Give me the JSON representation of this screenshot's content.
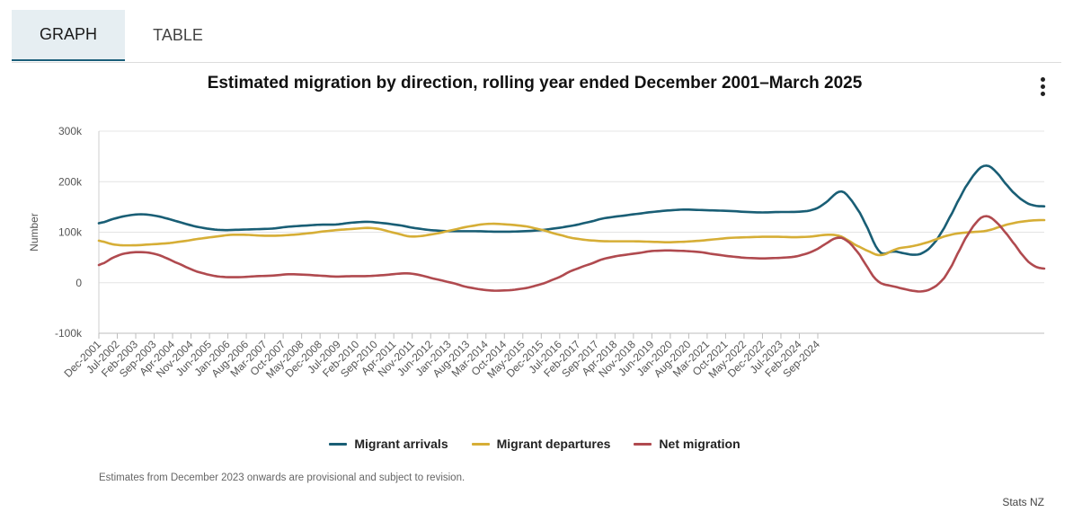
{
  "tabs": [
    {
      "label": "GRAPH",
      "active": true
    },
    {
      "label": "TABLE",
      "active": false
    }
  ],
  "menu": {
    "icon": "more-vertical-icon"
  },
  "colors": {
    "arrivals": "#195e75",
    "departures": "#d6ae36",
    "net": "#b04a4f",
    "grid": "#e4e4e4",
    "axis_text": "#555555"
  },
  "chart_data": {
    "type": "line",
    "title": "Estimated migration by direction, rolling year ended December 2001–March 2025",
    "xlabel": "",
    "ylabel": "Number",
    "ylim": [
      -100000,
      300000
    ],
    "yticks": [
      -100000,
      0,
      100000,
      200000,
      300000
    ],
    "ytick_labels": [
      "-100k",
      "0",
      "100k",
      "200k",
      "300k"
    ],
    "x_start": "2001-12",
    "x_end": "2025-03",
    "x_step_months": 1,
    "x_tick_labels": [
      "Dec-2001",
      "Jul-2002",
      "Feb-2003",
      "Sep-2003",
      "Apr-2004",
      "Nov-2004",
      "Jun-2005",
      "Jan-2006",
      "Aug-2006",
      "Mar-2007",
      "Oct-2007",
      "May-2008",
      "Dec-2008",
      "Jul-2009",
      "Feb-2010",
      "Sep-2010",
      "Apr-2011",
      "Nov-2011",
      "Jun-2012",
      "Jan-2013",
      "Aug-2013",
      "Mar-2014",
      "Oct-2014",
      "May-2015",
      "Dec-2015",
      "Jul-2016",
      "Feb-2017",
      "Sep-2017",
      "Apr-2018",
      "Nov-2018",
      "Jun-2019",
      "Jan-2020",
      "Aug-2020",
      "Mar-2021",
      "Oct-2021",
      "May-2022",
      "Dec-2022",
      "Jul-2023",
      "Feb-2024",
      "Sep-2024"
    ],
    "legend_position": "bottom",
    "series": [
      {
        "name": "Migrant arrivals",
        "anchors": [
          [
            0,
            116000
          ],
          [
            4,
            124000
          ],
          [
            8,
            130000
          ],
          [
            12,
            134000
          ],
          [
            16,
            136000
          ],
          [
            20,
            134000
          ],
          [
            24,
            130000
          ],
          [
            28,
            124000
          ],
          [
            32,
            118000
          ],
          [
            36,
            112000
          ],
          [
            40,
            108000
          ],
          [
            44,
            105000
          ],
          [
            48,
            104000
          ],
          [
            54,
            105000
          ],
          [
            60,
            106000
          ],
          [
            66,
            107000
          ],
          [
            72,
            111000
          ],
          [
            78,
            113000
          ],
          [
            84,
            115000
          ],
          [
            90,
            115000
          ],
          [
            96,
            119000
          ],
          [
            102,
            121000
          ],
          [
            108,
            118000
          ],
          [
            114,
            114000
          ],
          [
            120,
            108000
          ],
          [
            126,
            104000
          ],
          [
            132,
            102000
          ],
          [
            138,
            102000
          ],
          [
            144,
            102000
          ],
          [
            150,
            101000
          ],
          [
            156,
            101000
          ],
          [
            162,
            102000
          ],
          [
            168,
            104000
          ],
          [
            174,
            108000
          ],
          [
            180,
            113000
          ],
          [
            186,
            120000
          ],
          [
            192,
            128000
          ],
          [
            198,
            132000
          ],
          [
            204,
            136000
          ],
          [
            210,
            140000
          ],
          [
            216,
            143000
          ],
          [
            222,
            145000
          ],
          [
            228,
            144000
          ],
          [
            234,
            143000
          ],
          [
            240,
            142000
          ],
          [
            246,
            140000
          ],
          [
            252,
            139000
          ],
          [
            258,
            140000
          ],
          [
            264,
            140000
          ],
          [
            270,
            142000
          ],
          [
            274,
            150000
          ],
          [
            278,
            167000
          ],
          [
            281,
            183000
          ],
          [
            282,
            186000
          ],
          [
            284,
            175000
          ],
          [
            287,
            155000
          ],
          [
            290,
            130000
          ],
          [
            293,
            95000
          ],
          [
            296,
            60000
          ],
          [
            297,
            52000
          ],
          [
            299,
            58000
          ],
          [
            301,
            64000
          ],
          [
            304,
            60000
          ],
          [
            307,
            57000
          ],
          [
            310,
            54000
          ],
          [
            313,
            58000
          ],
          [
            316,
            70000
          ],
          [
            319,
            90000
          ],
          [
            322,
            118000
          ],
          [
            325,
            148000
          ],
          [
            328,
            180000
          ],
          [
            331,
            205000
          ],
          [
            334,
            225000
          ],
          [
            336,
            235000
          ],
          [
            338,
            232000
          ],
          [
            340,
            225000
          ],
          [
            343,
            205000
          ],
          [
            346,
            185000
          ],
          [
            349,
            170000
          ],
          [
            352,
            158000
          ],
          [
            355,
            152000
          ],
          [
            359,
            151000
          ]
        ]
      },
      {
        "name": "Migrant departures",
        "anchors": [
          [
            0,
            85000
          ],
          [
            4,
            77000
          ],
          [
            8,
            74000
          ],
          [
            14,
            74000
          ],
          [
            20,
            76000
          ],
          [
            26,
            78000
          ],
          [
            32,
            82000
          ],
          [
            38,
            87000
          ],
          [
            44,
            91000
          ],
          [
            50,
            95000
          ],
          [
            56,
            95000
          ],
          [
            62,
            93000
          ],
          [
            68,
            93000
          ],
          [
            74,
            95000
          ],
          [
            80,
            98000
          ],
          [
            86,
            102000
          ],
          [
            92,
            105000
          ],
          [
            98,
            107000
          ],
          [
            102,
            109000
          ],
          [
            106,
            107000
          ],
          [
            112,
            99000
          ],
          [
            118,
            91000
          ],
          [
            122,
            92000
          ],
          [
            128,
            97000
          ],
          [
            134,
            104000
          ],
          [
            140,
            111000
          ],
          [
            146,
            116000
          ],
          [
            150,
            117000
          ],
          [
            156,
            115000
          ],
          [
            162,
            112000
          ],
          [
            168,
            105000
          ],
          [
            174,
            96000
          ],
          [
            180,
            88000
          ],
          [
            186,
            84000
          ],
          [
            192,
            82000
          ],
          [
            198,
            82000
          ],
          [
            204,
            82000
          ],
          [
            210,
            81000
          ],
          [
            216,
            80000
          ],
          [
            222,
            81000
          ],
          [
            228,
            83000
          ],
          [
            234,
            86000
          ],
          [
            240,
            89000
          ],
          [
            246,
            90000
          ],
          [
            252,
            91000
          ],
          [
            258,
            91000
          ],
          [
            264,
            90000
          ],
          [
            270,
            91000
          ],
          [
            276,
            95000
          ],
          [
            280,
            95000
          ],
          [
            283,
            90000
          ],
          [
            286,
            78000
          ],
          [
            290,
            68000
          ],
          [
            294,
            58000
          ],
          [
            297,
            52000
          ],
          [
            300,
            60000
          ],
          [
            303,
            68000
          ],
          [
            306,
            70000
          ],
          [
            309,
            72000
          ],
          [
            312,
            76000
          ],
          [
            316,
            82000
          ],
          [
            320,
            90000
          ],
          [
            324,
            96000
          ],
          [
            328,
            99000
          ],
          [
            334,
            101000
          ],
          [
            337,
            102000
          ],
          [
            340,
            107000
          ],
          [
            344,
            114000
          ],
          [
            348,
            119000
          ],
          [
            352,
            122000
          ],
          [
            356,
            124000
          ],
          [
            359,
            124000
          ]
        ]
      },
      {
        "name": "Net migration",
        "anchors": [
          [
            0,
            32000
          ],
          [
            4,
            46000
          ],
          [
            8,
            56000
          ],
          [
            12,
            60000
          ],
          [
            16,
            61000
          ],
          [
            20,
            59000
          ],
          [
            24,
            53000
          ],
          [
            28,
            43000
          ],
          [
            32,
            34000
          ],
          [
            36,
            24000
          ],
          [
            40,
            18000
          ],
          [
            44,
            13000
          ],
          [
            48,
            11000
          ],
          [
            54,
            11000
          ],
          [
            60,
            13000
          ],
          [
            66,
            14000
          ],
          [
            72,
            17000
          ],
          [
            78,
            16000
          ],
          [
            84,
            14000
          ],
          [
            90,
            12000
          ],
          [
            96,
            13000
          ],
          [
            102,
            13000
          ],
          [
            108,
            15000
          ],
          [
            114,
            18000
          ],
          [
            118,
            19000
          ],
          [
            122,
            15000
          ],
          [
            128,
            7000
          ],
          [
            134,
            0
          ],
          [
            140,
            -9000
          ],
          [
            146,
            -14000
          ],
          [
            150,
            -16000
          ],
          [
            156,
            -15000
          ],
          [
            162,
            -11000
          ],
          [
            168,
            -3000
          ],
          [
            174,
            9000
          ],
          [
            180,
            25000
          ],
          [
            186,
            36000
          ],
          [
            192,
            48000
          ],
          [
            198,
            54000
          ],
          [
            204,
            58000
          ],
          [
            210,
            63000
          ],
          [
            216,
            64000
          ],
          [
            222,
            63000
          ],
          [
            228,
            61000
          ],
          [
            234,
            56000
          ],
          [
            240,
            52000
          ],
          [
            246,
            49000
          ],
          [
            252,
            48000
          ],
          [
            258,
            49000
          ],
          [
            264,
            51000
          ],
          [
            270,
            59000
          ],
          [
            274,
            70000
          ],
          [
            278,
            84000
          ],
          [
            281,
            92000
          ],
          [
            283,
            88000
          ],
          [
            286,
            75000
          ],
          [
            290,
            48000
          ],
          [
            293,
            20000
          ],
          [
            295,
            5000
          ],
          [
            297,
            -3000
          ],
          [
            300,
            -5000
          ],
          [
            304,
            -10000
          ],
          [
            307,
            -14000
          ],
          [
            310,
            -17000
          ],
          [
            313,
            -18000
          ],
          [
            316,
            -13000
          ],
          [
            319,
            -3000
          ],
          [
            322,
            15000
          ],
          [
            325,
            45000
          ],
          [
            328,
            78000
          ],
          [
            331,
            105000
          ],
          [
            334,
            125000
          ],
          [
            336,
            135000
          ],
          [
            338,
            132000
          ],
          [
            340,
            125000
          ],
          [
            343,
            108000
          ],
          [
            346,
            88000
          ],
          [
            349,
            67000
          ],
          [
            352,
            45000
          ],
          [
            355,
            33000
          ],
          [
            357,
            28000
          ],
          [
            359,
            28000
          ]
        ]
      }
    ]
  },
  "footer": {
    "note": "Estimates from December 2023 onwards are provisional and subject to revision.",
    "source": "Stats NZ"
  }
}
